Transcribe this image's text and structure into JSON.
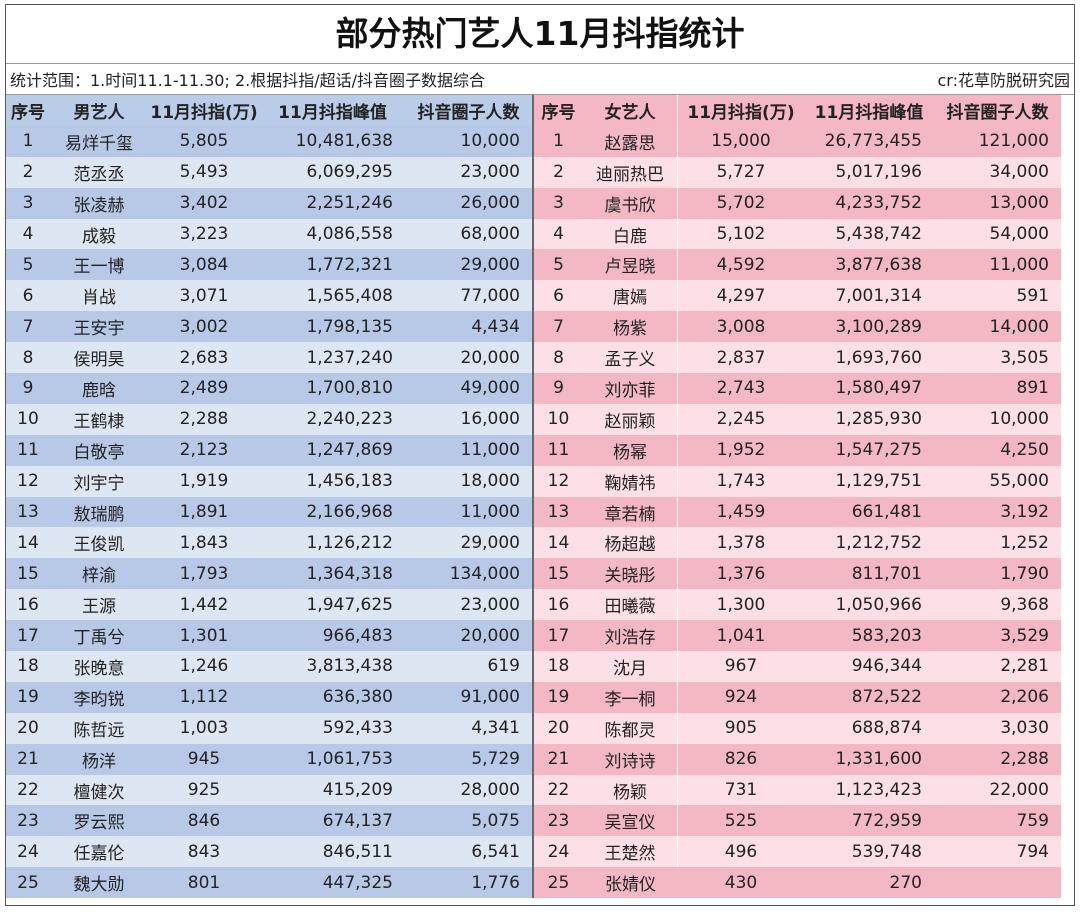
{
  "header": {
    "title": "部分热门艺人11月抖指统计",
    "scope": "统计范围：1.时间11.1-11.30; 2.根据抖指/超话/抖音圈子数据综合",
    "credit": "cr:花草防脱研究园"
  },
  "male_table": {
    "columns": [
      "序号",
      "男艺人",
      "11月抖指(万)",
      "11月抖指峰值",
      "抖音圈子人数"
    ],
    "rows": [
      [
        "1",
        "易烊千玺",
        "5,805",
        "10,481,638",
        "10,000"
      ],
      [
        "2",
        "范丞丞",
        "5,493",
        "6,069,295",
        "23,000"
      ],
      [
        "3",
        "张凌赫",
        "3,402",
        "2,251,246",
        "26,000"
      ],
      [
        "4",
        "成毅",
        "3,223",
        "4,086,558",
        "68,000"
      ],
      [
        "5",
        "王一博",
        "3,084",
        "1,772,321",
        "29,000"
      ],
      [
        "6",
        "肖战",
        "3,071",
        "1,565,408",
        "77,000"
      ],
      [
        "7",
        "王安宇",
        "3,002",
        "1,798,135",
        "4,434"
      ],
      [
        "8",
        "侯明昊",
        "2,683",
        "1,237,240",
        "20,000"
      ],
      [
        "9",
        "鹿晗",
        "2,489",
        "1,700,810",
        "49,000"
      ],
      [
        "10",
        "王鹤棣",
        "2,288",
        "2,240,223",
        "16,000"
      ],
      [
        "11",
        "白敬亭",
        "2,123",
        "1,247,869",
        "11,000"
      ],
      [
        "12",
        "刘宇宁",
        "1,919",
        "1,456,183",
        "18,000"
      ],
      [
        "13",
        "敖瑞鹏",
        "1,891",
        "2,166,968",
        "11,000"
      ],
      [
        "14",
        "王俊凯",
        "1,843",
        "1,126,212",
        "29,000"
      ],
      [
        "15",
        "梓渝",
        "1,793",
        "1,364,318",
        "134,000"
      ],
      [
        "16",
        "王源",
        "1,442",
        "1,947,625",
        "23,000"
      ],
      [
        "17",
        "丁禹兮",
        "1,301",
        "966,483",
        "20,000"
      ],
      [
        "18",
        "张晚意",
        "1,246",
        "3,813,438",
        "619"
      ],
      [
        "19",
        "李昀锐",
        "1,112",
        "636,380",
        "91,000"
      ],
      [
        "20",
        "陈哲远",
        "1,003",
        "592,433",
        "4,341"
      ],
      [
        "21",
        "杨洋",
        "945",
        "1,061,753",
        "5,729"
      ],
      [
        "22",
        "檀健次",
        "925",
        "415,209",
        "28,000"
      ],
      [
        "23",
        "罗云熙",
        "846",
        "674,137",
        "5,075"
      ],
      [
        "24",
        "任嘉伦",
        "843",
        "846,511",
        "6,541"
      ],
      [
        "25",
        "魏大勋",
        "801",
        "447,325",
        "1,776"
      ]
    ]
  },
  "female_table": {
    "columns": [
      "序号",
      "女艺人",
      "11月抖指(万)",
      "11月抖指峰值",
      "抖音圈子人数"
    ],
    "rows": [
      [
        "1",
        "赵露思",
        "15,000",
        "26,773,455",
        "121,000"
      ],
      [
        "2",
        "迪丽热巴",
        "5,727",
        "5,017,196",
        "34,000"
      ],
      [
        "3",
        "虞书欣",
        "5,702",
        "4,233,752",
        "13,000"
      ],
      [
        "4",
        "白鹿",
        "5,102",
        "5,438,742",
        "54,000"
      ],
      [
        "5",
        "卢昱晓",
        "4,592",
        "3,877,638",
        "11,000"
      ],
      [
        "6",
        "唐嫣",
        "4,297",
        "7,001,314",
        "591"
      ],
      [
        "7",
        "杨紫",
        "3,008",
        "3,100,289",
        "14,000"
      ],
      [
        "8",
        "孟子义",
        "2,837",
        "1,693,760",
        "3,505"
      ],
      [
        "9",
        "刘亦菲",
        "2,743",
        "1,580,497",
        "891"
      ],
      [
        "10",
        "赵丽颖",
        "2,245",
        "1,285,930",
        "10,000"
      ],
      [
        "11",
        "杨幂",
        "1,952",
        "1,547,275",
        "4,250"
      ],
      [
        "12",
        "鞠婧祎",
        "1,743",
        "1,129,751",
        "55,000"
      ],
      [
        "13",
        "章若楠",
        "1,459",
        "661,481",
        "3,192"
      ],
      [
        "14",
        "杨超越",
        "1,378",
        "1,212,752",
        "1,252"
      ],
      [
        "15",
        "关晓彤",
        "1,376",
        "811,701",
        "1,790"
      ],
      [
        "16",
        "田曦薇",
        "1,300",
        "1,050,966",
        "9,368"
      ],
      [
        "17",
        "刘浩存",
        "1,041",
        "583,203",
        "3,529"
      ],
      [
        "18",
        "沈月",
        "967",
        "946,344",
        "2,281"
      ],
      [
        "19",
        "李一桐",
        "924",
        "872,522",
        "2,206"
      ],
      [
        "20",
        "陈都灵",
        "905",
        "688,874",
        "3,030"
      ],
      [
        "21",
        "刘诗诗",
        "826",
        "1,331,600",
        "2,288"
      ],
      [
        "22",
        "杨颖",
        "731",
        "1,123,423",
        "22,000"
      ],
      [
        "23",
        "吴宣仪",
        "525",
        "772,959",
        "759"
      ],
      [
        "24",
        "王楚然",
        "496",
        "539,748",
        "794"
      ],
      [
        "25",
        "张婧仪",
        "430",
        "270",
        null
      ]
    ]
  }
}
